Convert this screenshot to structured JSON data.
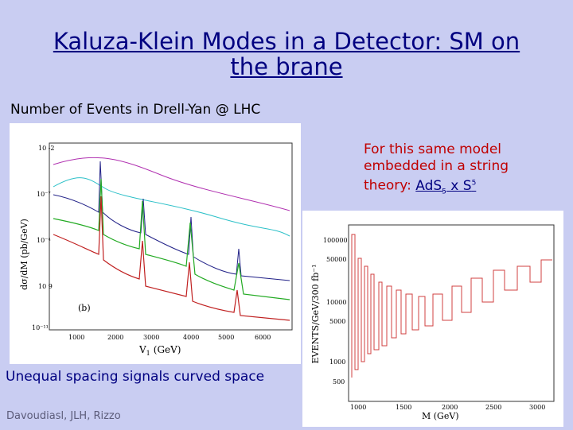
{
  "slide": {
    "title": "Kaluza-Klein Modes in a Detector: SM on the brane",
    "subtitle": "Number of Events in Drell-Yan @ LHC",
    "note": {
      "text": "For this same model embedded in a string theory: ",
      "link": "AdS",
      "link_sub": "5",
      "link_mid": " x S",
      "link_sup": "5"
    },
    "bottom_caption": "Unequal spacing signals curved space",
    "footer": "Davoudiasl, JLH, Rizzo"
  },
  "left_plot": {
    "ylabel": "dσ/dM (pb/GeV)",
    "xlabel": "V",
    "xlabel_sub": "1",
    "xlabel_unit": "(GeV)",
    "panel_label": "(b)",
    "y_ticks": [
      "10 -2",
      "10⁻⁷",
      "10⁻⁴",
      "10 9",
      "10⁻¹¹"
    ],
    "x_ticks": [
      "1000",
      "2000",
      "3000",
      "4000",
      "5000",
      "6000"
    ]
  },
  "right_plot": {
    "ylabel": "EVENTS/GeV/300 fb⁻¹",
    "xlabel": "M (GeV)",
    "y_ticks": [
      "100000",
      "50000",
      "10000",
      "5000",
      "1000",
      "500"
    ],
    "x_ticks": [
      "1000",
      "1500",
      "2000",
      "2500",
      "3000"
    ]
  }
}
